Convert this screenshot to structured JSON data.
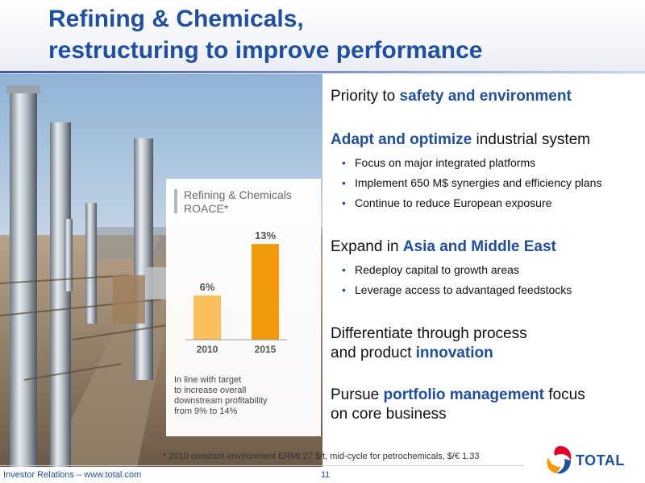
{
  "title": {
    "line1": "Refining & Chemicals,",
    "line2": "restructuring to improve performance"
  },
  "chart_data": {
    "type": "bar",
    "title": "Refining & Chemicals ROACE*",
    "title_lines": [
      "Refining & Chemicals",
      "ROACE*"
    ],
    "categories": [
      "2010",
      "2015"
    ],
    "values": [
      6,
      13
    ],
    "data_labels": [
      "6%",
      "13%"
    ],
    "colors": [
      "#fbbf5c",
      "#f39a0b"
    ],
    "ylim": [
      0,
      14
    ],
    "grid": false,
    "legend": "none"
  },
  "chart_note": {
    "lines": [
      "In line with target",
      "to increase overall",
      "downstream profitability",
      "from 9% to 14%"
    ]
  },
  "sections": [
    {
      "type": "heading",
      "parts": [
        {
          "text": "Priority to ",
          "bold": false
        },
        {
          "text": "safety and environment",
          "bold": true
        }
      ]
    },
    {
      "type": "heading",
      "parts": [
        {
          "text": "Adapt and optimize",
          "bold": true
        },
        {
          "text": " industrial system",
          "bold": false
        }
      ],
      "bullets": [
        "Focus on major integrated platforms",
        "Implement 650 M$ synergies and efficiency plans",
        "Continue to reduce European exposure"
      ]
    },
    {
      "type": "heading",
      "parts": [
        {
          "text": "Expand in ",
          "bold": false
        },
        {
          "text": "Asia and Middle East",
          "bold": true
        }
      ],
      "bullets": [
        "Redeploy capital to growth areas",
        "Leverage access to advantaged feedstocks"
      ]
    },
    {
      "type": "heading",
      "parts": [
        {
          "text": "Differentiate through process",
          "bold": false
        },
        {
          "text": "\n",
          "bold": false
        },
        {
          "text": "and product ",
          "bold": false
        },
        {
          "text": "innovation",
          "bold": true
        }
      ]
    },
    {
      "type": "heading",
      "parts": [
        {
          "text": "Pursue ",
          "bold": false
        },
        {
          "text": "portfolio management",
          "bold": true
        },
        {
          "text": " focus",
          "bold": false
        },
        {
          "text": "\n",
          "bold": false
        },
        {
          "text": "on core business",
          "bold": false
        }
      ]
    }
  ],
  "footnote": "* 2010 constant environment ERMI 27 $/t, mid-cycle for petrochemicals, $/€ 1.33",
  "footer": {
    "left": "Investor Relations – www.total.com",
    "page": "11"
  },
  "logo": {
    "text": "TOTAL",
    "colors": [
      "#e4002b",
      "#f39a0b",
      "#1f4fa3"
    ]
  },
  "icons": [
    "total-logo-icon",
    "refinery-photo"
  ]
}
